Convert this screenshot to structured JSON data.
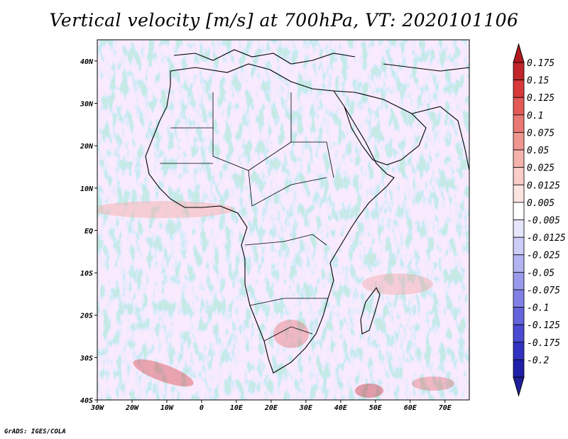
{
  "title": "Vertical velocity [m/s] at 700hPa, VT: 2020101106",
  "credit": "GrADS: IGES/COLA",
  "map": {
    "lon_range": [
      -30,
      77
    ],
    "lat_range": [
      -40,
      45
    ],
    "lat_ticks": [
      {
        "value": 40,
        "label": "40N"
      },
      {
        "value": 30,
        "label": "30N"
      },
      {
        "value": 20,
        "label": "20N"
      },
      {
        "value": 10,
        "label": "10N"
      },
      {
        "value": 0,
        "label": "EQ"
      },
      {
        "value": -10,
        "label": "10S"
      },
      {
        "value": -20,
        "label": "20S"
      },
      {
        "value": -30,
        "label": "30S"
      },
      {
        "value": -40,
        "label": "40S"
      }
    ],
    "lon_ticks": [
      {
        "value": -30,
        "label": "30W"
      },
      {
        "value": -20,
        "label": "20W"
      },
      {
        "value": -10,
        "label": "10W"
      },
      {
        "value": 0,
        "label": "0"
      },
      {
        "value": 10,
        "label": "10E"
      },
      {
        "value": 20,
        "label": "20E"
      },
      {
        "value": 30,
        "label": "30E"
      },
      {
        "value": 40,
        "label": "40E"
      },
      {
        "value": 50,
        "label": "50E"
      },
      {
        "value": 60,
        "label": "60E"
      },
      {
        "value": 70,
        "label": "70E"
      }
    ]
  },
  "colorbar": {
    "levels": [
      {
        "label": "0.175",
        "color": "#c0252b"
      },
      {
        "label": "0.15",
        "color": "#d8393a"
      },
      {
        "label": "0.125",
        "color": "#e35a57"
      },
      {
        "label": "0.1",
        "color": "#ea7874"
      },
      {
        "label": "0.075",
        "color": "#f09690"
      },
      {
        "label": "0.05",
        "color": "#f5b2ac"
      },
      {
        "label": "0.025",
        "color": "#f9cdc8"
      },
      {
        "label": "0.0125",
        "color": "#fce4e1"
      },
      {
        "label": "0.005",
        "color": "#ffffff"
      },
      {
        "label": "-0.005",
        "color": "#e5e5fb"
      },
      {
        "label": "-0.0125",
        "color": "#ccccf7"
      },
      {
        "label": "-0.025",
        "color": "#b3b3f2"
      },
      {
        "label": "-0.05",
        "color": "#9a9aed"
      },
      {
        "label": "-0.075",
        "color": "#8080e6"
      },
      {
        "label": "-0.1",
        "color": "#6464dc"
      },
      {
        "label": "-0.125",
        "color": "#4a4ad2"
      },
      {
        "label": "-0.175",
        "color": "#3232c0"
      },
      {
        "label": "-0.2",
        "color": "#1f1fa8"
      }
    ],
    "top_arrow_color": "#b01a20",
    "bottom_arrow_color": "#20209a"
  }
}
